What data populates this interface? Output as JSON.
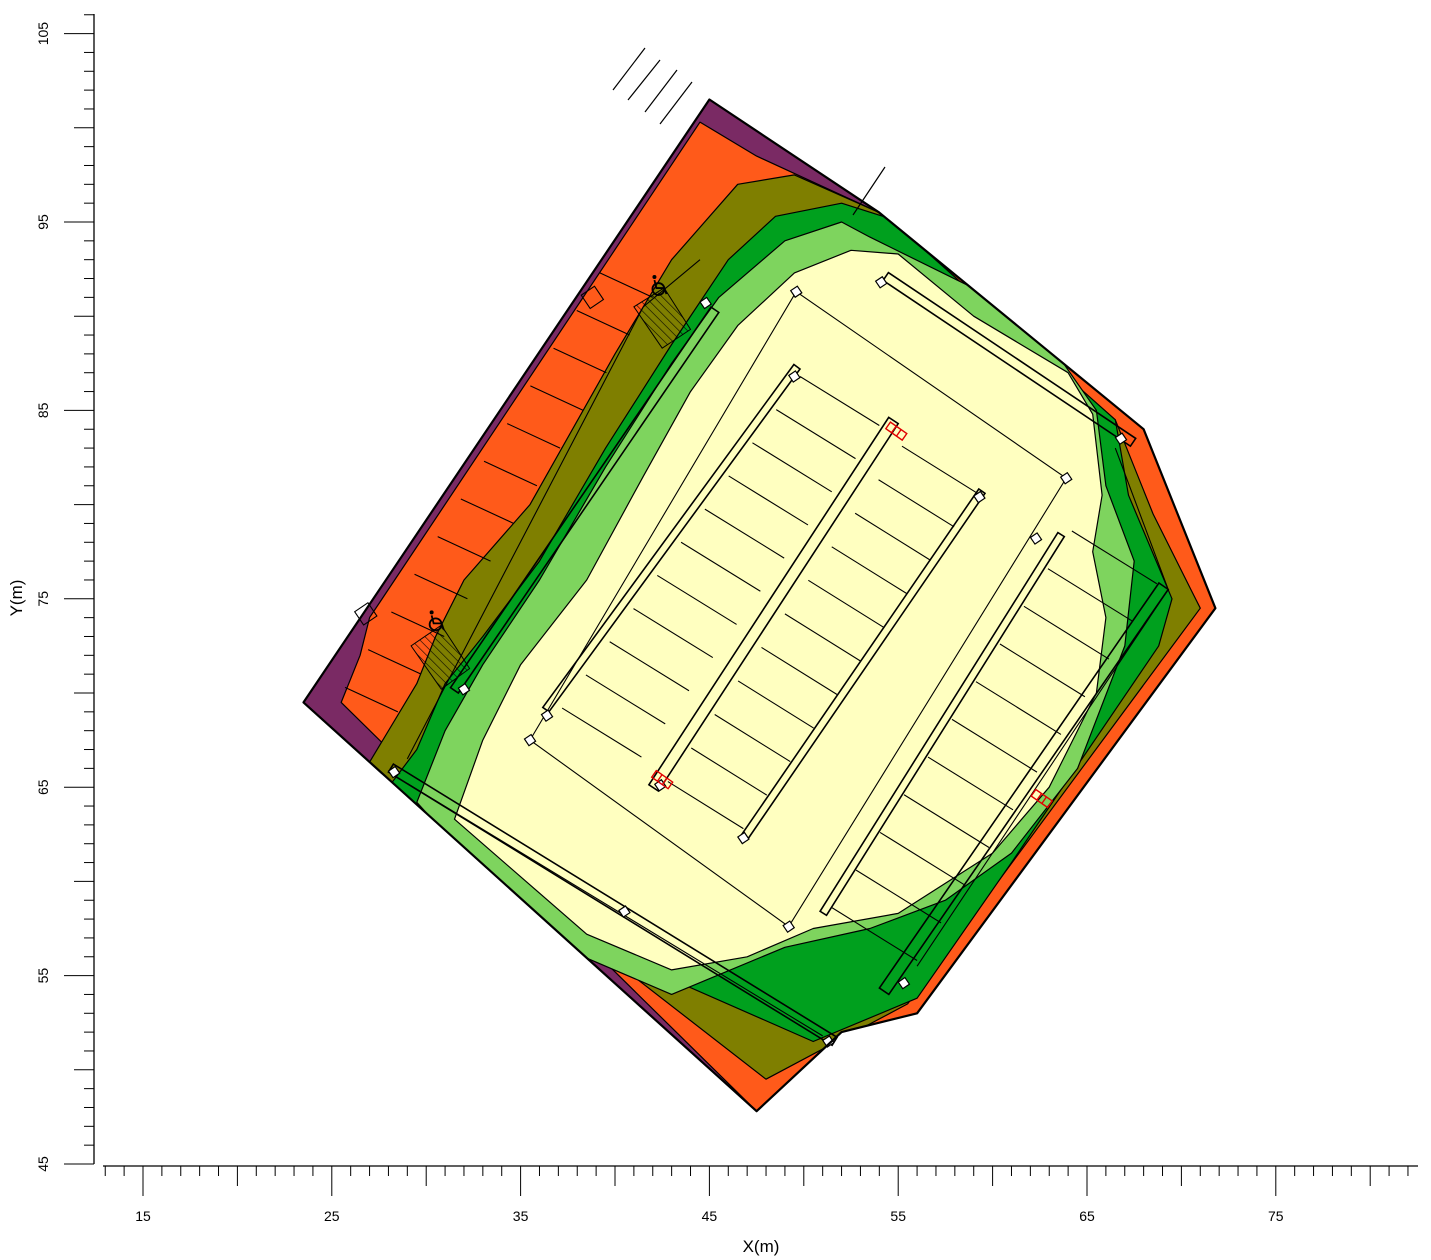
{
  "chart_data": {
    "type": "contour-map",
    "title": "",
    "xlabel": "X(m)",
    "ylabel": "Y(m)",
    "xlim": [
      13,
      83
    ],
    "ylim": [
      45,
      106
    ],
    "x_ticks": [
      15,
      25,
      35,
      45,
      55,
      65,
      75
    ],
    "y_ticks": [
      45,
      55,
      65,
      75,
      85,
      95,
      105
    ],
    "contour_levels": [
      {
        "color": "#7a2a64"
      },
      {
        "color": "#ff5a1a"
      },
      {
        "color": "#7f7f00"
      },
      {
        "color": "#00a01e"
      },
      {
        "color": "#7ed45e"
      },
      {
        "color": "#ffffc0"
      }
    ],
    "site_outline": [
      [
        23.5,
        69.5
      ],
      [
        45,
        101.5
      ],
      [
        54,
        95.5
      ],
      [
        68,
        84
      ],
      [
        71.8,
        74.5
      ],
      [
        56,
        53
      ],
      [
        52,
        52
      ],
      [
        47.5,
        47.8
      ]
    ],
    "features": {
      "accessible_symbol_count": 2,
      "red_markers": [
        [
          54.9,
          83.9
        ],
        [
          42.5,
          65.4
        ],
        [
          62.6,
          64.4
        ]
      ]
    }
  }
}
